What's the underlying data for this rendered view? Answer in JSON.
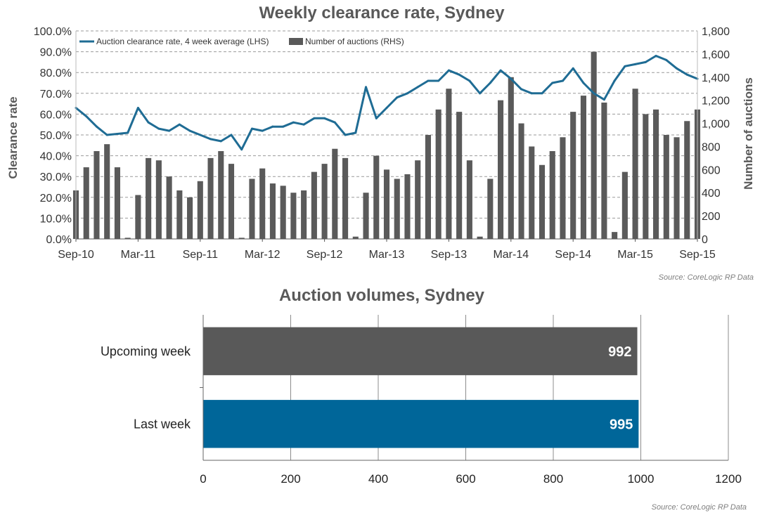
{
  "chart_data": [
    {
      "type": "line",
      "title": "Weekly clearance  rate, Sydney",
      "ylabel": "Clearance rate",
      "y2label": "Number of auctions",
      "ylim": [
        0,
        100
      ],
      "y2lim": [
        0,
        1800
      ],
      "y_ticks": [
        "0.0%",
        "10.0%",
        "20.0%",
        "30.0%",
        "40.0%",
        "50.0%",
        "60.0%",
        "70.0%",
        "80.0%",
        "90.0%",
        "100.0%"
      ],
      "y2_ticks": [
        "0",
        "200",
        "400",
        "600",
        "800",
        "1,000",
        "1,200",
        "1,400",
        "1,600",
        "1,800"
      ],
      "x_ticks": [
        "Sep-10",
        "Mar-11",
        "Sep-11",
        "Mar-12",
        "Sep-12",
        "Mar-13",
        "Sep-13",
        "Mar-14",
        "Sep-14",
        "Mar-15",
        "Sep-15"
      ],
      "legend": {
        "placement": "top-left",
        "line_label": "Auction clearance rate, 4 week average (LHS)",
        "bar_label": "Number of auctions (RHS)"
      },
      "grid": "horizontal dashed",
      "source": "Source: CoreLogic  RP Data",
      "colors": {
        "line": "#1f6c94",
        "bars": "#5a5a5a"
      },
      "series": [
        {
          "name": "Auction clearance rate, 4 week average (LHS)",
          "axis": "left",
          "kind": "line",
          "x": [
            "Sep-10",
            "Oct-10",
            "Nov-10",
            "Dec-10",
            "Jan-11",
            "Feb-11",
            "Mar-11",
            "Apr-11",
            "May-11",
            "Jun-11",
            "Jul-11",
            "Aug-11",
            "Sep-11",
            "Oct-11",
            "Nov-11",
            "Dec-11",
            "Jan-12",
            "Feb-12",
            "Mar-12",
            "Apr-12",
            "May-12",
            "Jun-12",
            "Jul-12",
            "Aug-12",
            "Sep-12",
            "Oct-12",
            "Nov-12",
            "Dec-12",
            "Jan-13",
            "Feb-13",
            "Mar-13",
            "Apr-13",
            "May-13",
            "Jun-13",
            "Jul-13",
            "Aug-13",
            "Sep-13",
            "Oct-13",
            "Nov-13",
            "Dec-13",
            "Jan-14",
            "Feb-14",
            "Mar-14",
            "Apr-14",
            "May-14",
            "Jun-14",
            "Jul-14",
            "Aug-14",
            "Sep-14",
            "Oct-14",
            "Nov-14",
            "Dec-14",
            "Jan-15",
            "Feb-15",
            "Mar-15",
            "Apr-15",
            "May-15",
            "Jun-15",
            "Jul-15",
            "Aug-15",
            "Sep-15"
          ],
          "values": [
            63,
            59,
            54,
            50,
            50.5,
            51,
            63,
            56,
            53,
            52,
            55,
            52,
            50,
            48,
            47,
            50,
            43,
            53,
            52,
            54,
            54,
            56,
            55,
            58,
            58,
            56,
            50,
            51,
            73,
            58,
            63,
            68,
            70,
            73,
            76,
            76,
            81,
            79,
            76,
            70,
            75,
            81,
            77,
            72,
            70,
            70,
            75,
            76,
            82,
            75,
            70,
            67,
            76,
            83,
            84,
            85,
            88,
            86,
            82,
            79,
            77
          ]
        },
        {
          "name": "Number of auctions (RHS)",
          "axis": "right",
          "kind": "bar",
          "x": [
            "Sep-10",
            "Oct-10",
            "Nov-10",
            "Dec-10",
            "Jan-11",
            "Feb-11",
            "Mar-11",
            "Apr-11",
            "May-11",
            "Jun-11",
            "Jul-11",
            "Aug-11",
            "Sep-11",
            "Oct-11",
            "Nov-11",
            "Dec-11",
            "Jan-12",
            "Feb-12",
            "Mar-12",
            "Apr-12",
            "May-12",
            "Jun-12",
            "Jul-12",
            "Aug-12",
            "Sep-12",
            "Oct-12",
            "Nov-12",
            "Dec-12",
            "Jan-13",
            "Feb-13",
            "Mar-13",
            "Apr-13",
            "May-13",
            "Jun-13",
            "Jul-13",
            "Aug-13",
            "Sep-13",
            "Oct-13",
            "Nov-13",
            "Dec-13",
            "Jan-14",
            "Feb-14",
            "Mar-14",
            "Apr-14",
            "May-14",
            "Jun-14",
            "Jul-14",
            "Aug-14",
            "Sep-14",
            "Oct-14",
            "Nov-14",
            "Dec-14",
            "Jan-15",
            "Feb-15",
            "Mar-15",
            "Apr-15",
            "May-15",
            "Jun-15",
            "Jul-15",
            "Aug-15",
            "Sep-15"
          ],
          "values": [
            420,
            620,
            760,
            820,
            620,
            10,
            380,
            700,
            680,
            540,
            420,
            360,
            500,
            700,
            760,
            650,
            10,
            520,
            610,
            480,
            460,
            400,
            420,
            580,
            650,
            780,
            700,
            20,
            400,
            720,
            600,
            520,
            560,
            680,
            900,
            1120,
            1300,
            1100,
            680,
            20,
            520,
            1200,
            1400,
            1000,
            800,
            640,
            760,
            880,
            1100,
            1240,
            1620,
            1180,
            60,
            580,
            1300,
            1080,
            1120,
            900,
            880,
            1020,
            1120
          ]
        }
      ]
    },
    {
      "type": "bar",
      "orientation": "horizontal",
      "title": "Auction volumes, Sydney",
      "categories": [
        "Upcoming week",
        "Last week"
      ],
      "values": [
        992,
        995
      ],
      "data_labels": [
        "992",
        "995"
      ],
      "xlim": [
        0,
        1200
      ],
      "x_ticks": [
        "0",
        "200",
        "400",
        "600",
        "800",
        "1000",
        "1200"
      ],
      "grid": "vertical",
      "source": "Source: CoreLogic  RP Data",
      "colors": {
        "Upcoming week": "#595959",
        "Last week": "#006699"
      }
    }
  ]
}
